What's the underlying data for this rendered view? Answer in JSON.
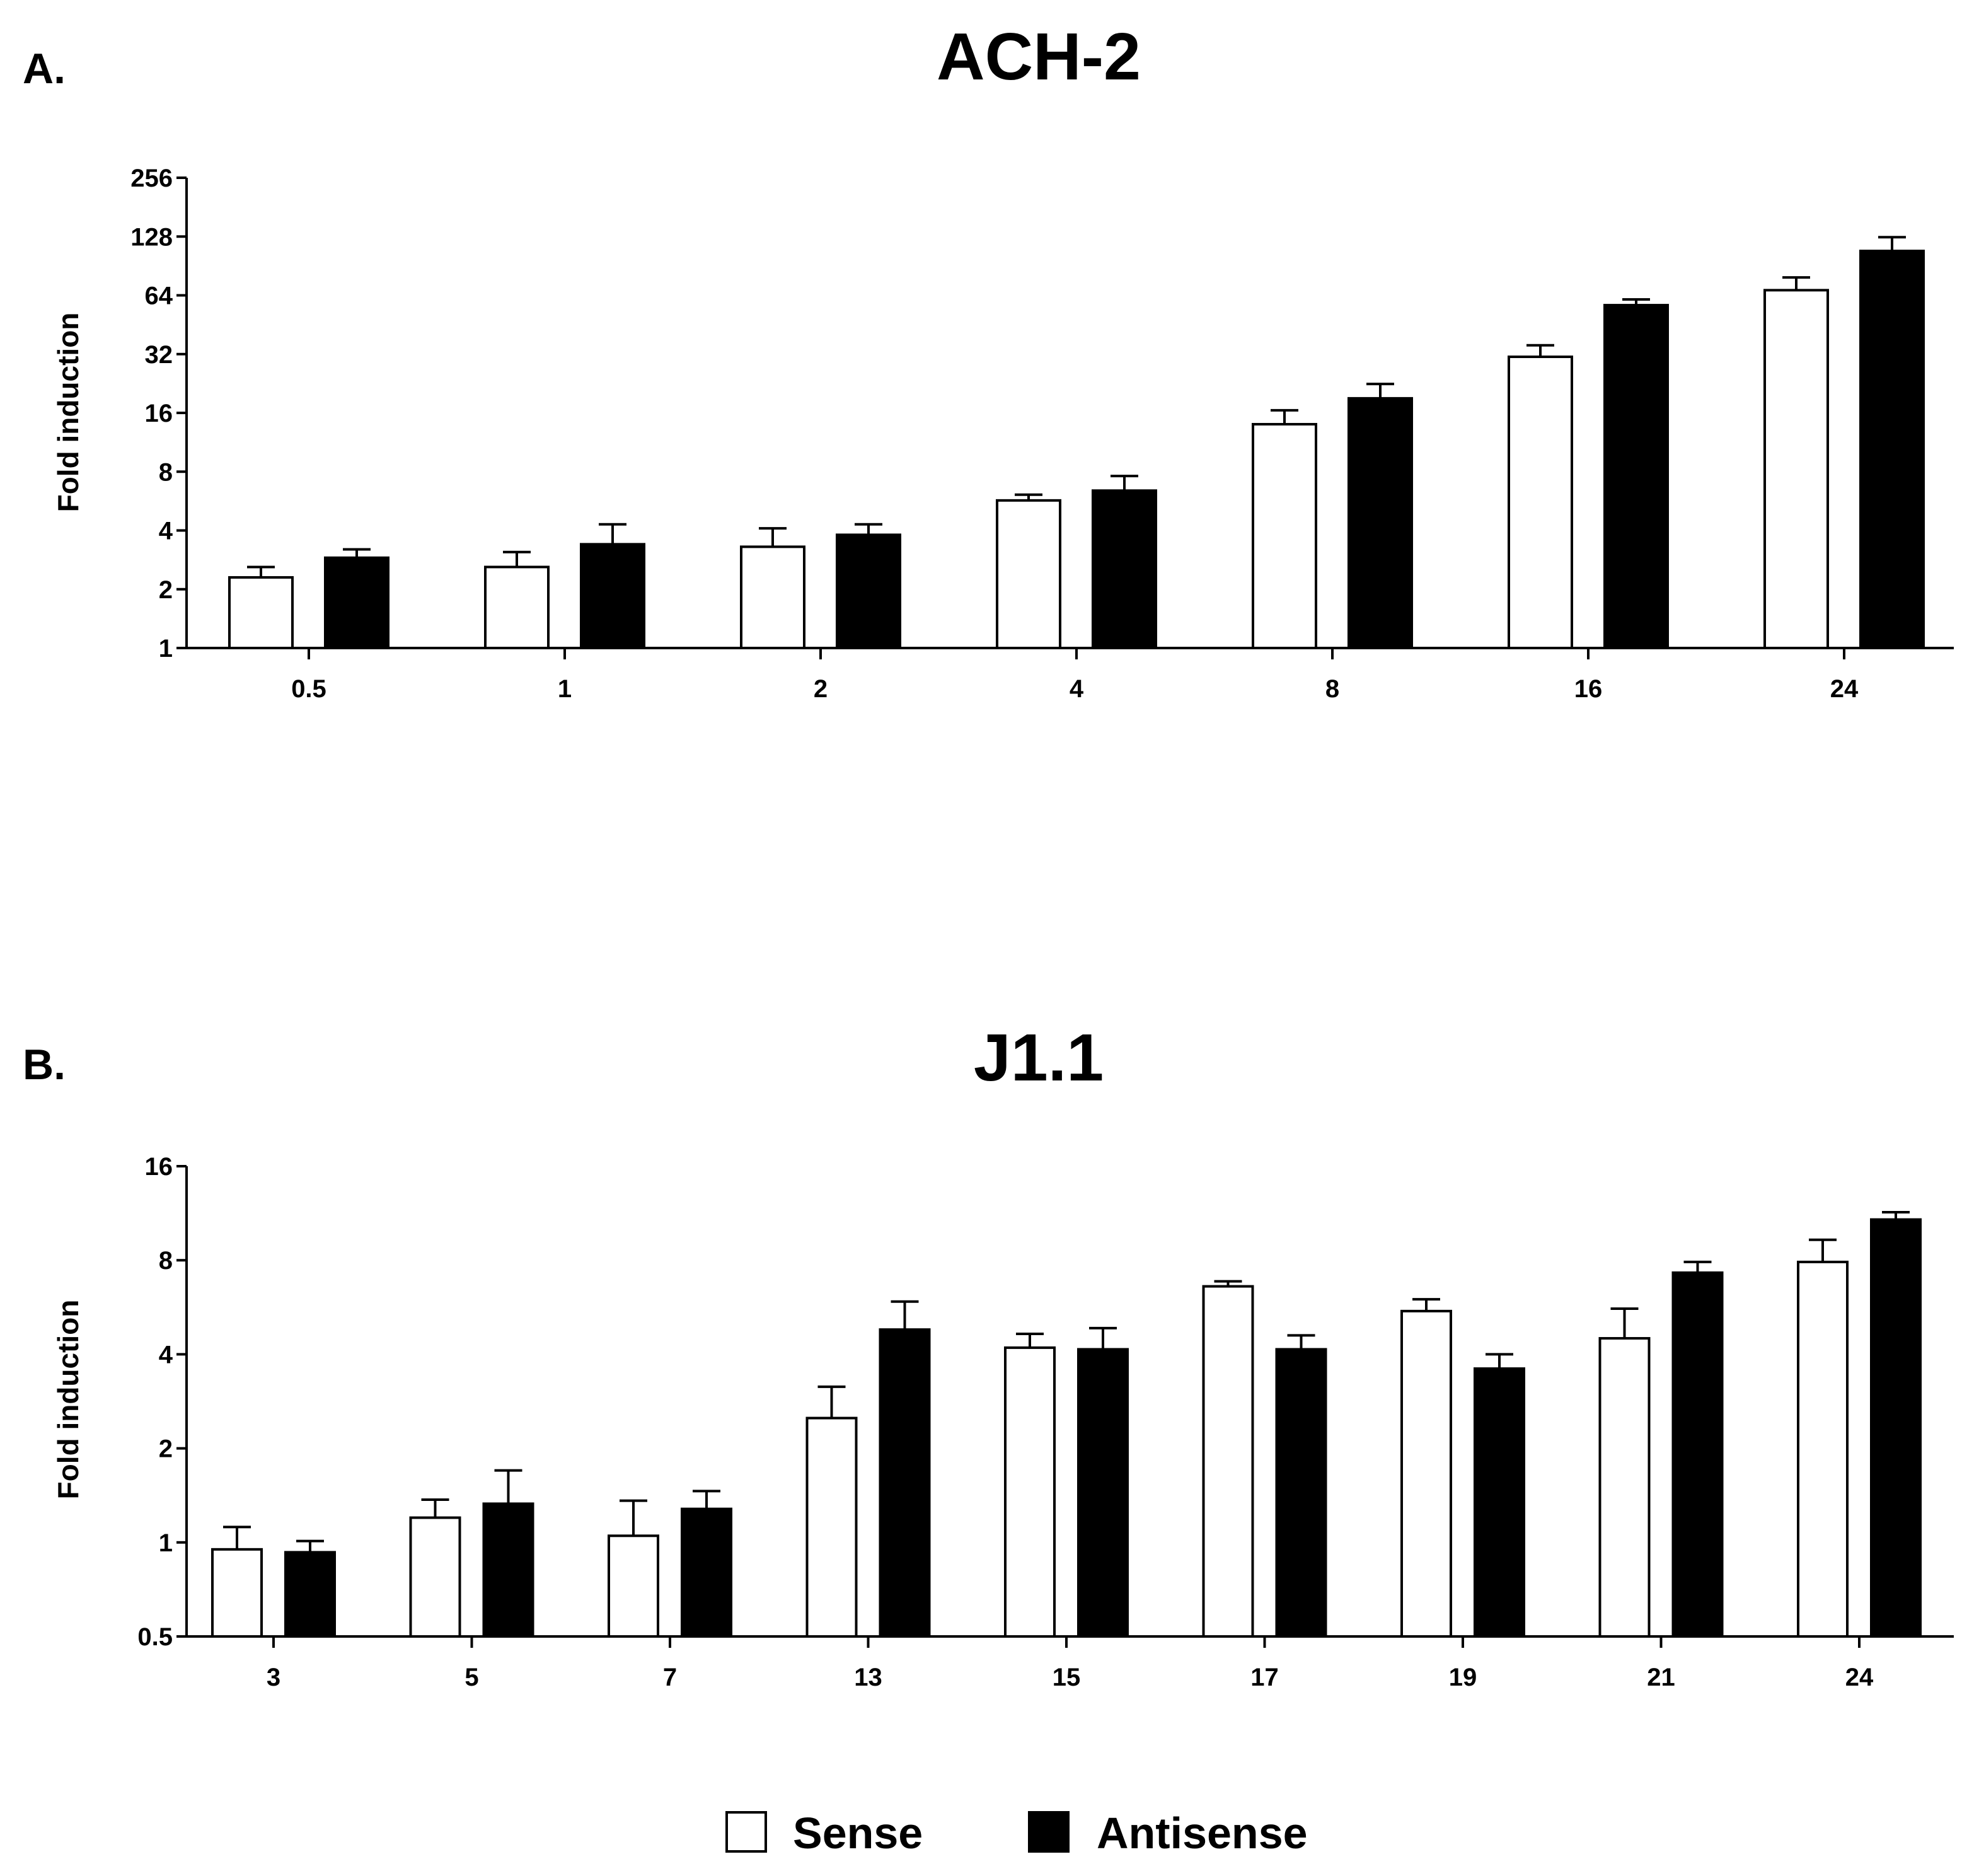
{
  "colors": {
    "sense": "#ffffff",
    "antisense": "#000000",
    "axis": "#000000"
  },
  "chart_data": [
    {
      "type": "bar",
      "panel": "A.",
      "title": "ACH-2",
      "xlabel": "",
      "ylabel": "Fold induction",
      "yscale": "log2",
      "ylim": [
        1,
        256
      ],
      "yticks": [
        1,
        2,
        4,
        8,
        16,
        32,
        64,
        128,
        256
      ],
      "categories": [
        "0.5",
        "1",
        "2",
        "4",
        "8",
        "16",
        "24"
      ],
      "series": [
        {
          "name": "Sense",
          "values": [
            2.3,
            2.6,
            3.3,
            5.7,
            14,
            31,
            68
          ],
          "errors": [
            0.3,
            0.5,
            0.8,
            0.4,
            2.5,
            4.5,
            11
          ]
        },
        {
          "name": "Antisense",
          "values": [
            2.9,
            3.4,
            3.8,
            6.4,
            19,
            57,
            108
          ],
          "errors": [
            0.3,
            0.9,
            0.5,
            1.2,
            3.5,
            4,
            19
          ]
        }
      ]
    },
    {
      "type": "bar",
      "panel": "B.",
      "title": "J1.1",
      "xlabel": "",
      "ylabel": "Fold induction",
      "yscale": "log2",
      "ylim": [
        0.5,
        16
      ],
      "yticks": [
        0.5,
        1,
        2,
        4,
        8,
        16
      ],
      "categories": [
        "3",
        "5",
        "7",
        "13",
        "15",
        "17",
        "19",
        "21",
        "24"
      ],
      "series": [
        {
          "name": "Sense",
          "values": [
            0.95,
            1.2,
            1.05,
            2.5,
            4.2,
            6.6,
            5.5,
            4.5,
            7.9
          ],
          "errors": [
            0.17,
            0.17,
            0.31,
            0.65,
            0.45,
            0.25,
            0.5,
            1.1,
            1.4
          ]
        },
        {
          "name": "Antisense",
          "values": [
            0.93,
            1.33,
            1.28,
            4.8,
            4.15,
            4.15,
            3.6,
            7.3,
            10.8
          ],
          "errors": [
            0.08,
            0.37,
            0.18,
            1.1,
            0.7,
            0.45,
            0.4,
            0.6,
            0.6
          ]
        }
      ]
    }
  ],
  "legend": [
    {
      "label": "Sense",
      "color": "#ffffff"
    },
    {
      "label": "Antisense",
      "color": "#000000"
    }
  ]
}
